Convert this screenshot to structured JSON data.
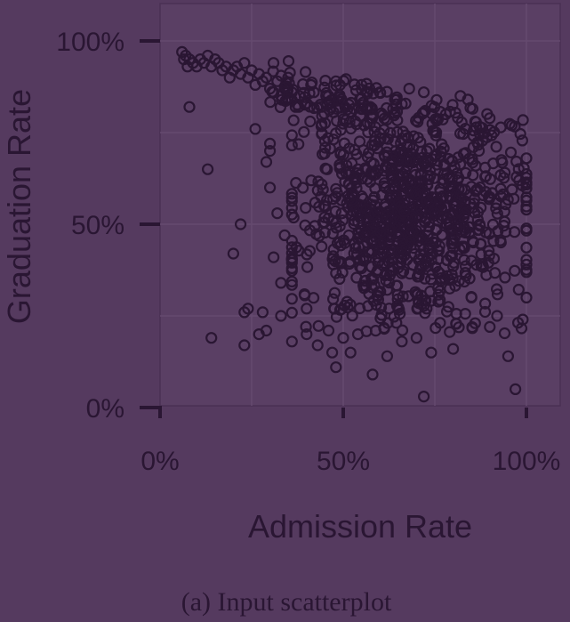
{
  "chart_data": {
    "type": "scatter",
    "xlabel": "Admission Rate",
    "ylabel": "Graduation Rate",
    "caption": "(a) Input scatterplot",
    "xlim": [
      0,
      1
    ],
    "ylim": [
      0,
      1
    ],
    "x_ticks": [
      {
        "value": 0,
        "label": "0%"
      },
      {
        "value": 0.5,
        "label": "50%"
      },
      {
        "value": 1,
        "label": "100%"
      }
    ],
    "y_ticks": [
      {
        "value": 0,
        "label": "0%"
      },
      {
        "value": 0.5,
        "label": "50%"
      },
      {
        "value": 1,
        "label": "100%"
      }
    ],
    "grid": true,
    "point_count": 1200,
    "colors": {
      "background": "#553a5f",
      "marks": "#2a1633"
    },
    "points": [
      [
        0.06,
        0.97
      ],
      [
        0.065,
        0.95
      ],
      [
        0.07,
        0.96
      ],
      [
        0.075,
        0.93
      ],
      [
        0.08,
        0.95
      ],
      [
        0.09,
        0.94
      ],
      [
        0.1,
        0.93
      ],
      [
        0.11,
        0.95
      ],
      [
        0.12,
        0.94
      ],
      [
        0.13,
        0.96
      ],
      [
        0.14,
        0.93
      ],
      [
        0.15,
        0.95
      ],
      [
        0.16,
        0.94
      ],
      [
        0.17,
        0.92
      ],
      [
        0.18,
        0.93
      ],
      [
        0.19,
        0.9
      ],
      [
        0.2,
        0.92
      ],
      [
        0.21,
        0.93
      ],
      [
        0.22,
        0.91
      ],
      [
        0.23,
        0.94
      ],
      [
        0.24,
        0.9
      ],
      [
        0.25,
        0.92
      ],
      [
        0.26,
        0.88
      ],
      [
        0.27,
        0.91
      ],
      [
        0.28,
        0.89
      ],
      [
        0.29,
        0.9
      ],
      [
        0.3,
        0.87
      ],
      [
        0.31,
        0.86
      ],
      [
        0.32,
        0.89
      ],
      [
        0.33,
        0.85
      ],
      [
        0.34,
        0.87
      ],
      [
        0.35,
        0.84
      ],
      [
        0.36,
        0.86
      ],
      [
        0.37,
        0.82
      ],
      [
        0.38,
        0.85
      ],
      [
        0.4,
        0.83
      ],
      [
        0.42,
        0.86
      ],
      [
        0.44,
        0.82
      ],
      [
        0.46,
        0.85
      ],
      [
        0.48,
        0.89
      ],
      [
        0.55,
        0.88
      ],
      [
        0.6,
        0.86
      ],
      [
        0.68,
        0.87
      ],
      [
        0.72,
        0.86
      ],
      [
        0.82,
        0.85
      ],
      [
        0.08,
        0.82
      ],
      [
        0.13,
        0.65
      ],
      [
        0.22,
        0.5
      ],
      [
        0.2,
        0.42
      ],
      [
        0.26,
        0.76
      ],
      [
        0.23,
        0.26
      ],
      [
        0.24,
        0.27
      ],
      [
        0.14,
        0.19
      ],
      [
        0.23,
        0.17
      ],
      [
        0.27,
        0.2
      ],
      [
        0.29,
        0.21
      ],
      [
        0.28,
        0.26
      ],
      [
        0.33,
        0.25
      ],
      [
        0.36,
        0.18
      ],
      [
        0.4,
        0.2
      ],
      [
        0.4,
        0.27
      ],
      [
        0.43,
        0.17
      ],
      [
        0.46,
        0.21
      ],
      [
        0.47,
        0.15
      ],
      [
        0.48,
        0.11
      ],
      [
        0.5,
        0.19
      ],
      [
        0.52,
        0.15
      ],
      [
        0.54,
        0.2
      ],
      [
        0.58,
        0.09
      ],
      [
        0.62,
        0.14
      ],
      [
        0.66,
        0.18
      ],
      [
        0.7,
        0.19
      ],
      [
        0.74,
        0.15
      ],
      [
        0.72,
        0.03
      ],
      [
        0.8,
        0.16
      ],
      [
        0.86,
        0.23
      ],
      [
        0.9,
        0.22
      ],
      [
        0.92,
        0.25
      ],
      [
        0.95,
        0.14
      ],
      [
        0.97,
        0.05
      ],
      [
        0.99,
        0.24
      ],
      [
        1.0,
        0.3
      ],
      [
        1.0,
        0.39
      ],
      [
        1.0,
        0.54
      ],
      [
        0.98,
        0.62
      ],
      [
        0.96,
        0.77
      ],
      [
        0.84,
        0.84
      ],
      [
        0.78,
        0.8
      ],
      [
        0.86,
        0.78
      ],
      [
        0.31,
        0.41
      ],
      [
        0.3,
        0.6
      ],
      [
        0.29,
        0.67
      ],
      [
        0.32,
        0.53
      ],
      [
        0.34,
        0.47
      ],
      [
        0.33,
        0.34
      ],
      [
        0.36,
        0.38
      ],
      [
        0.3,
        0.7
      ],
      [
        0.3,
        0.72
      ]
    ]
  }
}
